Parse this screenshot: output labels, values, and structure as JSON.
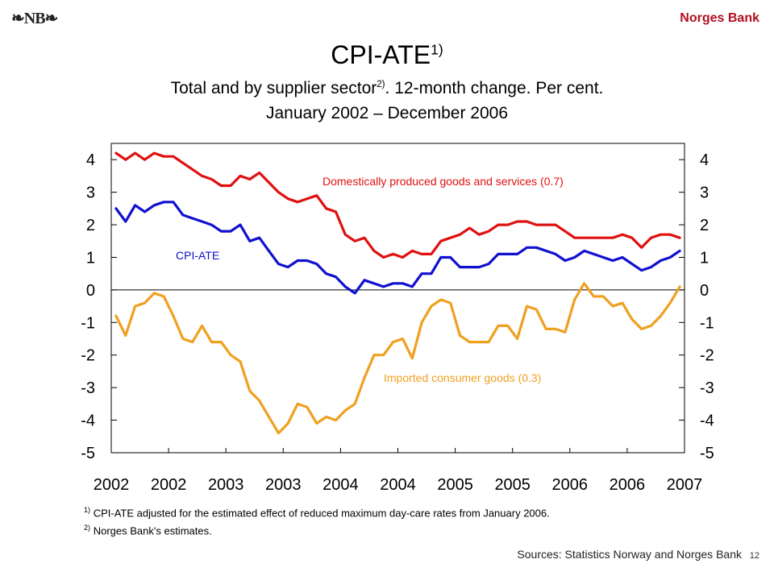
{
  "header": {
    "logo_text": "❧NB❧",
    "bank_name": "Norges Bank"
  },
  "title": {
    "main": "CPI-ATE",
    "main_sup": "1)",
    "subtitle_a": "Total and by supplier sector",
    "subtitle_sup": "2)",
    "subtitle_b": ". 12-month change. Per cent.",
    "subtitle_line2": "January 2002 – December 2006"
  },
  "footnotes": [
    {
      "mark": "1)",
      "text": "CPI-ATE adjusted for the estimated effect of reduced maximum day-care rates from January 2006."
    },
    {
      "mark": "2)",
      "text": "Norges Bank's estimates."
    }
  ],
  "sources": "Sources: Statistics Norway and Norges Bank",
  "page_number": "12",
  "chart_data": {
    "type": "line",
    "title": "CPI-ATE",
    "x_start": "2002-01",
    "x_tick_labels": [
      "2002",
      "2002",
      "2003",
      "2003",
      "2004",
      "2004",
      "2005",
      "2005",
      "2006",
      "2006",
      "2007"
    ],
    "ylim": [
      -5,
      4.5
    ],
    "y_ticks": [
      4,
      3,
      2,
      1,
      0,
      -1,
      -2,
      -3,
      -4,
      -5
    ],
    "y_tick_labels": [
      "4",
      "3",
      "2",
      "1",
      "0",
      "-1",
      "-2",
      "-3",
      "-4",
      "-5"
    ],
    "grid": false,
    "zero_line": true,
    "series": [
      {
        "name": "Domestically produced goods and services (0.7)",
        "color": "#e01010",
        "values": [
          4.2,
          4.0,
          4.2,
          4.0,
          4.2,
          4.1,
          4.1,
          3.9,
          3.7,
          3.5,
          3.4,
          3.2,
          3.2,
          3.5,
          3.4,
          3.6,
          3.3,
          3.0,
          2.8,
          2.7,
          2.8,
          2.9,
          2.5,
          2.4,
          1.7,
          1.5,
          1.6,
          1.2,
          1.0,
          1.1,
          1.0,
          1.2,
          1.1,
          1.1,
          1.5,
          1.6,
          1.7,
          1.9,
          1.7,
          1.8,
          2.0,
          2.0,
          2.1,
          2.1,
          2.0,
          2.0,
          2.0,
          1.8,
          1.6,
          1.6,
          1.6,
          1.6,
          1.6,
          1.7,
          1.6,
          1.3,
          1.6,
          1.7,
          1.7,
          1.6
        ]
      },
      {
        "name": "CPI-ATE",
        "color": "#1010d0",
        "values": [
          2.5,
          2.1,
          2.6,
          2.4,
          2.6,
          2.7,
          2.7,
          2.3,
          2.2,
          2.1,
          2.0,
          1.8,
          1.8,
          2.0,
          1.5,
          1.6,
          1.2,
          0.8,
          0.7,
          0.9,
          0.9,
          0.8,
          0.5,
          0.4,
          0.1,
          -0.1,
          0.3,
          0.2,
          0.1,
          0.2,
          0.2,
          0.1,
          0.5,
          0.5,
          1.0,
          1.0,
          0.7,
          0.7,
          0.7,
          0.8,
          1.1,
          1.1,
          1.1,
          1.3,
          1.3,
          1.2,
          1.1,
          0.9,
          1.0,
          1.2,
          1.1,
          1.0,
          0.9,
          1.0,
          0.8,
          0.6,
          0.7,
          0.9,
          1.0,
          1.2
        ]
      },
      {
        "name": "Imported consumer goods (0.3)",
        "color": "#f0a020",
        "values": [
          -0.8,
          -1.4,
          -0.5,
          -0.4,
          -0.1,
          -0.2,
          -0.8,
          -1.5,
          -1.6,
          -1.1,
          -1.6,
          -1.6,
          -2.0,
          -2.2,
          -3.1,
          -3.4,
          -3.9,
          -4.4,
          -4.1,
          -3.5,
          -3.6,
          -4.1,
          -3.9,
          -4.0,
          -3.7,
          -3.5,
          -2.7,
          -2.0,
          -2.0,
          -1.6,
          -1.5,
          -2.1,
          -1.0,
          -0.5,
          -0.3,
          -0.4,
          -1.4,
          -1.6,
          -1.6,
          -1.6,
          -1.1,
          -1.1,
          -1.5,
          -0.5,
          -0.6,
          -1.2,
          -1.2,
          -1.3,
          -0.3,
          0.2,
          -0.2,
          -0.2,
          -0.5,
          -0.4,
          -0.9,
          -1.2,
          -1.1,
          -0.8,
          -0.4,
          0.1
        ]
      }
    ],
    "annotations": [
      {
        "text": "Domestically produced goods and services (0.7)",
        "color": "#e01010"
      },
      {
        "text": "CPI-ATE",
        "color": "#1010d0"
      },
      {
        "text": "Imported consumer goods (0.3)",
        "color": "#f0a020"
      }
    ]
  }
}
